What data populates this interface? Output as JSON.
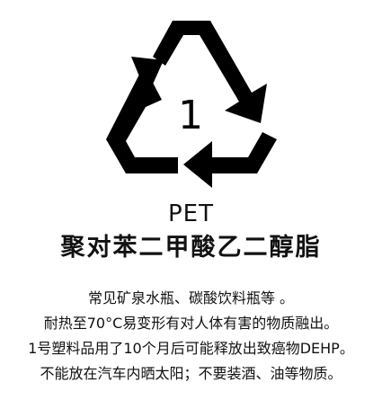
{
  "symbol": {
    "icon": "recycling-triangle-icon",
    "code": "1",
    "color": "#000000"
  },
  "material": {
    "abbreviation": "PET",
    "full_name": "聚对苯二甲酸乙二醇脂"
  },
  "description": [
    "常见矿泉水瓶、碳酸饮料瓶等 。",
    "耐热至70°C易变形有对人体有害的物质融出。",
    "1号塑料品用了10个月后可能释放出致癌物DEHP。",
    "不能放在汽车内晒太阳；不要装酒、油等物质。"
  ]
}
